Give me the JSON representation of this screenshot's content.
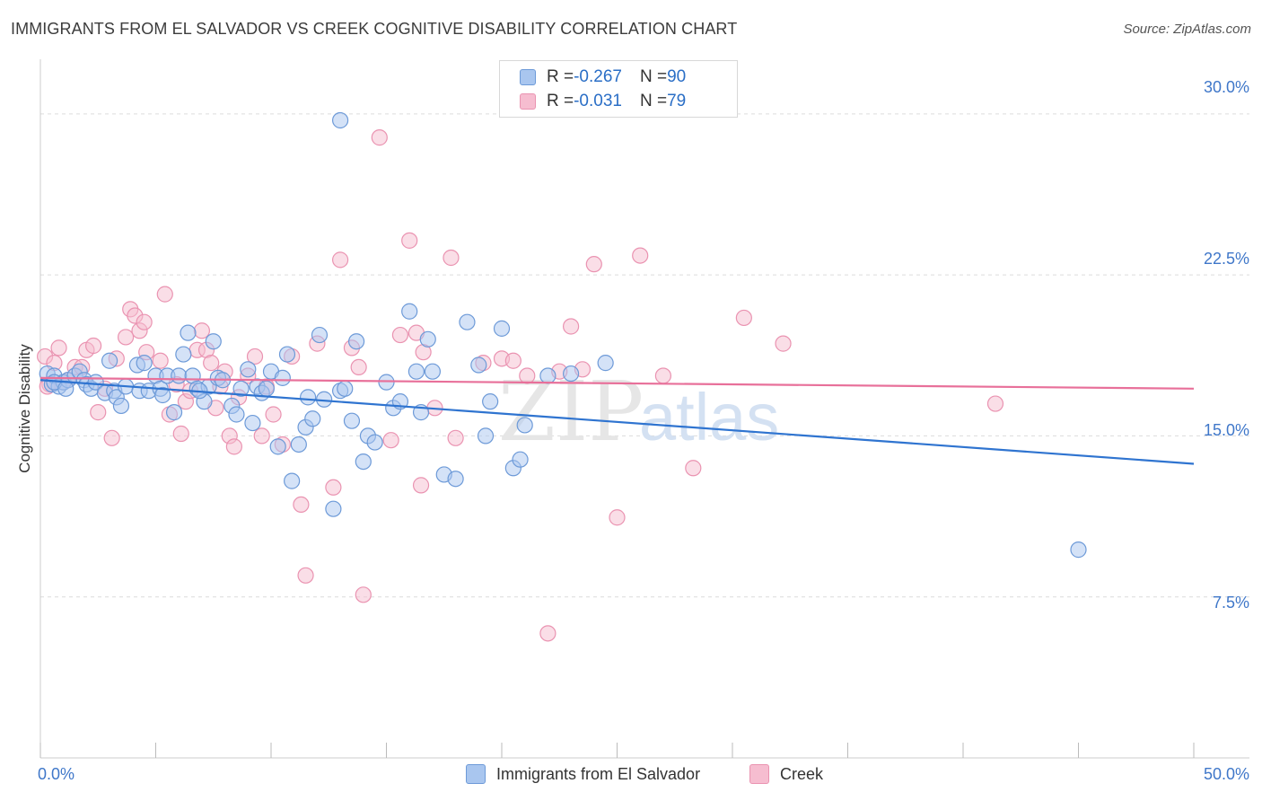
{
  "title": "IMMIGRANTS FROM EL SALVADOR VS CREEK COGNITIVE DISABILITY CORRELATION CHART",
  "source": "Source: ZipAtlas.com",
  "watermark": {
    "zip": "ZIP",
    "atlas": "atlas"
  },
  "legend": {
    "rows": [
      {
        "r_label": "R = ",
        "r_value": "-0.267",
        "n_label": "N = ",
        "n_value": "90"
      },
      {
        "r_label": "R = ",
        "r_value": "-0.031",
        "n_label": "N = ",
        "n_value": "79"
      }
    ]
  },
  "colors": {
    "blue_fill": "#a9c6ef",
    "blue_stroke": "#6d9ad8",
    "blue_line": "#2f74d0",
    "pink_fill": "#f6bdd0",
    "pink_stroke": "#ea93b1",
    "pink_line": "#e8709a",
    "tick_label": "#3f77c9",
    "grid": "#dcdcdc"
  },
  "chart_data": {
    "type": "scatter",
    "title": "IMMIGRANTS FROM EL SALVADOR VS CREEK COGNITIVE DISABILITY CORRELATION CHART",
    "xlabel": "",
    "ylabel": "Cognitive Disability",
    "xlim": [
      0,
      50
    ],
    "ylim": [
      0,
      32
    ],
    "x_tick_labels": [
      {
        "value": 0,
        "label": "0.0%"
      },
      {
        "value": 50,
        "label": "50.0%"
      }
    ],
    "y_tick_labels": [
      {
        "value": 7.5,
        "label": "7.5%"
      },
      {
        "value": 15.0,
        "label": "15.0%"
      },
      {
        "value": 22.5,
        "label": "22.5%"
      },
      {
        "value": 30.0,
        "label": "30.0%"
      }
    ],
    "grid": true,
    "series": [
      {
        "name": "Immigrants from El Salvador",
        "color": "#a9c6ef",
        "trend": {
          "x0": 0,
          "y0": 17.6,
          "x1": 50,
          "y1": 13.7
        },
        "points": [
          [
            0.3,
            17.9
          ],
          [
            0.5,
            17.4
          ],
          [
            0.6,
            17.8
          ],
          [
            0.8,
            17.3
          ],
          [
            1.0,
            17.5
          ],
          [
            1.2,
            17.6
          ],
          [
            1.5,
            17.8
          ],
          [
            1.7,
            18.0
          ],
          [
            1.9,
            17.6
          ],
          [
            2.0,
            17.4
          ],
          [
            2.2,
            17.2
          ],
          [
            2.4,
            17.5
          ],
          [
            2.8,
            17.0
          ],
          [
            3.0,
            18.5
          ],
          [
            3.2,
            17.1
          ],
          [
            3.3,
            16.8
          ],
          [
            3.5,
            16.4
          ],
          [
            3.7,
            17.3
          ],
          [
            4.2,
            18.3
          ],
          [
            4.3,
            17.1
          ],
          [
            4.5,
            18.4
          ],
          [
            4.7,
            17.1
          ],
          [
            5.0,
            17.8
          ],
          [
            5.2,
            17.2
          ],
          [
            5.3,
            16.9
          ],
          [
            5.5,
            17.8
          ],
          [
            5.8,
            16.1
          ],
          [
            6.0,
            17.8
          ],
          [
            6.2,
            18.8
          ],
          [
            6.4,
            19.8
          ],
          [
            6.6,
            17.8
          ],
          [
            6.8,
            17.2
          ],
          [
            7.1,
            16.6
          ],
          [
            7.3,
            17.3
          ],
          [
            7.5,
            19.4
          ],
          [
            7.7,
            17.7
          ],
          [
            7.9,
            17.6
          ],
          [
            8.3,
            16.4
          ],
          [
            8.5,
            16.0
          ],
          [
            8.7,
            17.2
          ],
          [
            9.0,
            18.1
          ],
          [
            9.2,
            15.6
          ],
          [
            9.4,
            17.3
          ],
          [
            9.6,
            17.0
          ],
          [
            9.8,
            17.2
          ],
          [
            10.0,
            18.0
          ],
          [
            10.3,
            14.5
          ],
          [
            10.5,
            17.7
          ],
          [
            10.7,
            18.8
          ],
          [
            10.9,
            12.9
          ],
          [
            11.2,
            14.6
          ],
          [
            11.5,
            15.4
          ],
          [
            11.6,
            16.8
          ],
          [
            11.8,
            15.8
          ],
          [
            12.1,
            19.7
          ],
          [
            12.3,
            16.7
          ],
          [
            12.7,
            11.6
          ],
          [
            13.0,
            17.1
          ],
          [
            13.2,
            17.2
          ],
          [
            13.5,
            15.7
          ],
          [
            13.7,
            19.4
          ],
          [
            14.0,
            13.8
          ],
          [
            14.2,
            15.0
          ],
          [
            14.5,
            14.7
          ],
          [
            15.0,
            17.5
          ],
          [
            15.3,
            16.3
          ],
          [
            15.6,
            16.6
          ],
          [
            16.0,
            20.8
          ],
          [
            16.3,
            18.0
          ],
          [
            16.5,
            16.1
          ],
          [
            16.8,
            19.5
          ],
          [
            17.0,
            18.0
          ],
          [
            17.5,
            13.2
          ],
          [
            18.0,
            13.0
          ],
          [
            18.5,
            20.3
          ],
          [
            19.0,
            18.3
          ],
          [
            19.3,
            15.0
          ],
          [
            19.5,
            16.6
          ],
          [
            20.0,
            20.0
          ],
          [
            20.5,
            13.5
          ],
          [
            20.8,
            13.9
          ],
          [
            21.0,
            15.5
          ],
          [
            22.0,
            17.8
          ],
          [
            23.0,
            17.9
          ],
          [
            24.5,
            18.4
          ],
          [
            13.0,
            29.7
          ],
          [
            0.6,
            17.5
          ],
          [
            1.1,
            17.2
          ],
          [
            45.0,
            9.7
          ],
          [
            6.9,
            17.1
          ]
        ]
      },
      {
        "name": "Creek",
        "color": "#f6bdd0",
        "trend": {
          "x0": 0,
          "y0": 17.7,
          "x1": 50,
          "y1": 17.2
        },
        "points": [
          [
            0.2,
            18.7
          ],
          [
            0.4,
            17.4
          ],
          [
            0.6,
            18.4
          ],
          [
            0.8,
            19.1
          ],
          [
            1.0,
            17.5
          ],
          [
            1.5,
            18.2
          ],
          [
            1.8,
            18.2
          ],
          [
            2.0,
            19.0
          ],
          [
            2.3,
            19.2
          ],
          [
            2.5,
            16.1
          ],
          [
            2.8,
            17.2
          ],
          [
            3.1,
            14.9
          ],
          [
            3.3,
            18.6
          ],
          [
            3.7,
            19.6
          ],
          [
            3.9,
            20.9
          ],
          [
            4.1,
            20.6
          ],
          [
            4.3,
            19.9
          ],
          [
            4.5,
            20.3
          ],
          [
            4.6,
            18.9
          ],
          [
            5.2,
            18.5
          ],
          [
            5.4,
            21.6
          ],
          [
            5.6,
            16.0
          ],
          [
            5.9,
            17.4
          ],
          [
            6.1,
            15.1
          ],
          [
            6.3,
            16.6
          ],
          [
            6.5,
            17.1
          ],
          [
            6.8,
            19.0
          ],
          [
            7.0,
            19.9
          ],
          [
            7.2,
            19.0
          ],
          [
            7.4,
            18.4
          ],
          [
            7.6,
            16.3
          ],
          [
            7.8,
            17.3
          ],
          [
            8.0,
            18.0
          ],
          [
            8.2,
            15.0
          ],
          [
            8.4,
            14.5
          ],
          [
            8.6,
            16.8
          ],
          [
            9.0,
            17.8
          ],
          [
            9.3,
            18.7
          ],
          [
            9.6,
            15.0
          ],
          [
            9.8,
            17.3
          ],
          [
            10.1,
            16.0
          ],
          [
            10.5,
            14.6
          ],
          [
            10.9,
            18.7
          ],
          [
            11.3,
            11.8
          ],
          [
            11.5,
            8.5
          ],
          [
            12.0,
            19.3
          ],
          [
            12.7,
            12.6
          ],
          [
            13.0,
            23.2
          ],
          [
            13.5,
            19.1
          ],
          [
            13.8,
            18.2
          ],
          [
            14.0,
            7.6
          ],
          [
            14.7,
            28.9
          ],
          [
            15.2,
            14.8
          ],
          [
            15.6,
            19.7
          ],
          [
            16.0,
            24.1
          ],
          [
            16.3,
            19.8
          ],
          [
            16.5,
            12.7
          ],
          [
            17.1,
            16.3
          ],
          [
            17.8,
            23.3
          ],
          [
            18.0,
            14.9
          ],
          [
            19.2,
            18.4
          ],
          [
            20.0,
            18.6
          ],
          [
            20.5,
            18.5
          ],
          [
            21.1,
            17.8
          ],
          [
            22.0,
            5.8
          ],
          [
            22.5,
            18.0
          ],
          [
            23.0,
            20.1
          ],
          [
            23.5,
            18.1
          ],
          [
            24.0,
            23.0
          ],
          [
            25.0,
            11.2
          ],
          [
            26.0,
            23.4
          ],
          [
            27.0,
            17.8
          ],
          [
            28.3,
            13.5
          ],
          [
            30.5,
            20.5
          ],
          [
            32.2,
            19.3
          ],
          [
            41.4,
            16.5
          ],
          [
            1.2,
            17.6
          ],
          [
            0.3,
            17.3
          ],
          [
            16.6,
            18.9
          ]
        ]
      }
    ]
  },
  "bottom_legend": [
    {
      "label": "Immigrants from El Salvador"
    },
    {
      "label": "Creek"
    }
  ]
}
